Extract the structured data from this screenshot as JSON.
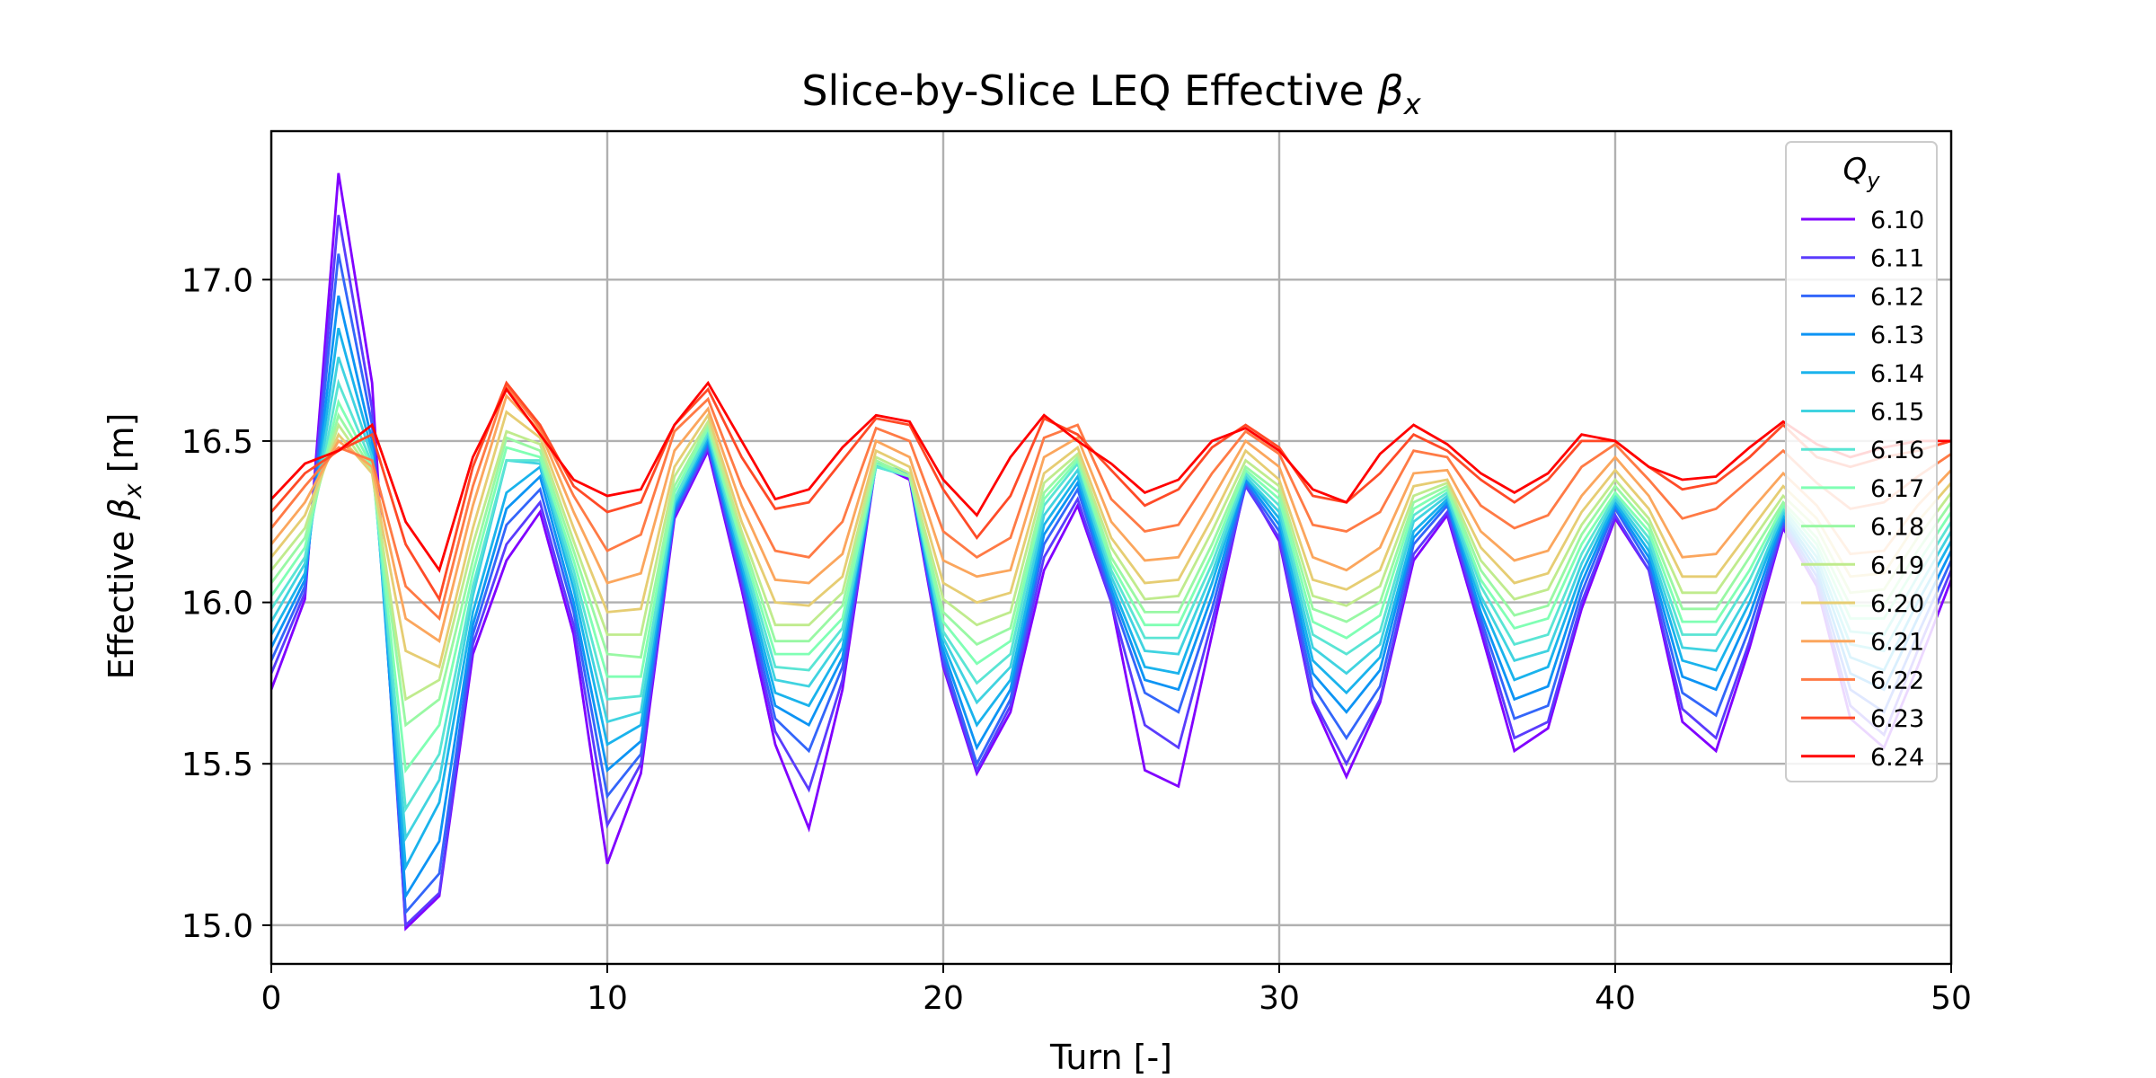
{
  "chart_data": {
    "type": "line",
    "title": {
      "prefix": "Slice-by-Slice LEQ Effective ",
      "symbol": "β",
      "subscript": "x"
    },
    "xlabel": "Turn [-]",
    "ylabel": {
      "prefix": "Effective ",
      "symbol": "β",
      "subscript": "x",
      "suffix": " [m]"
    },
    "xlim": [
      0,
      50
    ],
    "ylim": [
      14.88,
      17.46
    ],
    "xticks": [
      0,
      10,
      20,
      30,
      40,
      50
    ],
    "yticks": [
      15.0,
      15.5,
      16.0,
      16.5,
      17.0
    ],
    "ytick_labels": [
      "15.0",
      "15.5",
      "16.0",
      "16.5",
      "17.0"
    ],
    "grid": true,
    "legend": {
      "title_symbol": "Q",
      "title_subscript": "y",
      "placement": "upper right"
    },
    "x": [
      0,
      1,
      2,
      3,
      4,
      5,
      6,
      7,
      8,
      9,
      10,
      11,
      12,
      13,
      14,
      15,
      16,
      17,
      18,
      19,
      20,
      21,
      22,
      23,
      24,
      25,
      26,
      27,
      28,
      29,
      30,
      31,
      32,
      33,
      34,
      35,
      36,
      37,
      38,
      39,
      40,
      41,
      42,
      43,
      44,
      45,
      46,
      47,
      48,
      49,
      50
    ],
    "series": [
      {
        "name": "6.10",
        "color": "#8000ff",
        "values": [
          15.73,
          16.01,
          17.33,
          16.68,
          14.99,
          15.09,
          15.84,
          16.13,
          16.28,
          15.9,
          15.19,
          15.47,
          16.26,
          16.47,
          16.04,
          15.56,
          15.3,
          15.73,
          16.43,
          16.38,
          15.8,
          15.47,
          15.66,
          16.1,
          16.3,
          16.0,
          15.48,
          15.43,
          15.9,
          16.37,
          16.19,
          15.69,
          15.46,
          15.69,
          16.13,
          16.27,
          15.91,
          15.54,
          15.61,
          15.98,
          16.26,
          16.1,
          15.63,
          15.54,
          15.86,
          16.23,
          16.05,
          15.64,
          15.55,
          15.8,
          16.07
        ]
      },
      {
        "name": "6.11",
        "color": "#5a3cfd",
        "values": [
          15.78,
          16.03,
          17.2,
          16.6,
          15.0,
          15.1,
          15.87,
          16.18,
          16.31,
          15.93,
          15.31,
          15.5,
          16.27,
          16.48,
          16.06,
          15.6,
          15.42,
          15.76,
          16.43,
          16.39,
          15.81,
          15.48,
          15.68,
          16.14,
          16.32,
          16.0,
          15.62,
          15.55,
          15.94,
          16.36,
          16.2,
          15.7,
          15.5,
          15.7,
          16.15,
          16.28,
          15.93,
          15.58,
          15.63,
          16.0,
          16.27,
          16.1,
          15.67,
          15.58,
          15.88,
          16.24,
          16.06,
          15.68,
          15.59,
          15.85,
          16.1
        ]
      },
      {
        "name": "6.12",
        "color": "#3366fa",
        "values": [
          15.82,
          16.05,
          17.08,
          16.55,
          15.04,
          15.16,
          15.9,
          16.24,
          16.35,
          15.97,
          15.4,
          15.53,
          16.28,
          16.49,
          16.08,
          15.64,
          15.54,
          15.8,
          16.43,
          16.39,
          15.83,
          15.5,
          15.7,
          16.18,
          16.35,
          16.02,
          15.72,
          15.66,
          15.98,
          16.37,
          16.22,
          15.74,
          15.58,
          15.74,
          16.18,
          16.3,
          15.95,
          15.64,
          15.68,
          16.03,
          16.29,
          16.12,
          15.72,
          15.65,
          15.92,
          16.25,
          16.08,
          15.73,
          15.66,
          15.9,
          16.13
        ]
      },
      {
        "name": "6.13",
        "color": "#0d94f4",
        "values": [
          15.86,
          16.07,
          16.95,
          16.5,
          15.09,
          15.26,
          15.93,
          16.29,
          16.39,
          16.0,
          15.48,
          15.57,
          16.29,
          16.5,
          16.1,
          15.68,
          15.62,
          15.83,
          16.43,
          16.39,
          15.85,
          15.55,
          15.73,
          16.21,
          16.37,
          16.04,
          15.76,
          15.73,
          16.02,
          16.38,
          16.24,
          15.78,
          15.66,
          15.79,
          16.2,
          16.31,
          15.97,
          15.7,
          15.74,
          16.06,
          16.3,
          16.14,
          15.77,
          15.73,
          15.96,
          16.26,
          16.1,
          15.78,
          15.73,
          15.95,
          16.16
        ]
      },
      {
        "name": "6.14",
        "color": "#1ab3ec",
        "values": [
          15.9,
          16.09,
          16.85,
          16.47,
          15.18,
          15.38,
          15.97,
          16.34,
          16.42,
          16.04,
          15.56,
          15.62,
          16.3,
          16.51,
          16.12,
          15.72,
          15.68,
          15.86,
          16.43,
          16.4,
          15.87,
          15.62,
          15.76,
          16.24,
          16.39,
          16.06,
          15.8,
          15.78,
          16.06,
          16.39,
          16.26,
          15.82,
          15.72,
          15.83,
          16.22,
          16.32,
          16.0,
          15.76,
          15.8,
          16.09,
          16.31,
          16.16,
          15.82,
          15.79,
          16.0,
          16.27,
          16.12,
          15.83,
          15.79,
          16.0,
          16.19
        ]
      },
      {
        "name": "6.15",
        "color": "#40d3e0",
        "values": [
          15.94,
          16.12,
          16.76,
          16.45,
          15.27,
          15.45,
          16.02,
          16.44,
          16.43,
          16.07,
          15.63,
          15.66,
          16.31,
          16.52,
          16.14,
          15.76,
          15.74,
          15.89,
          16.42,
          16.39,
          15.89,
          15.69,
          15.8,
          16.27,
          16.41,
          16.08,
          15.85,
          15.84,
          16.09,
          16.39,
          16.28,
          15.86,
          15.78,
          15.87,
          16.25,
          16.33,
          16.02,
          15.82,
          15.85,
          16.12,
          16.32,
          16.18,
          15.86,
          15.85,
          16.03,
          16.28,
          16.14,
          15.87,
          15.85,
          16.04,
          16.22
        ]
      },
      {
        "name": "6.16",
        "color": "#5ae5d4",
        "values": [
          15.98,
          16.14,
          16.68,
          16.43,
          15.36,
          15.53,
          16.05,
          16.44,
          16.44,
          16.1,
          15.7,
          15.71,
          16.32,
          16.53,
          16.16,
          15.8,
          15.79,
          15.92,
          16.42,
          16.39,
          15.91,
          15.75,
          15.84,
          16.3,
          16.43,
          16.1,
          15.89,
          15.89,
          16.12,
          16.4,
          16.3,
          15.9,
          15.84,
          15.91,
          16.27,
          16.34,
          16.05,
          15.87,
          15.9,
          16.15,
          16.33,
          16.2,
          15.9,
          15.9,
          16.07,
          16.29,
          16.16,
          15.91,
          15.9,
          16.08,
          16.25
        ]
      },
      {
        "name": "6.17",
        "color": "#80ffb4",
        "values": [
          16.02,
          16.17,
          16.62,
          16.42,
          15.48,
          15.62,
          16.09,
          16.48,
          16.45,
          16.13,
          15.77,
          15.77,
          16.34,
          16.54,
          16.18,
          15.84,
          15.84,
          15.95,
          16.43,
          16.39,
          15.94,
          15.81,
          15.88,
          16.32,
          16.44,
          16.12,
          15.93,
          15.93,
          16.15,
          16.41,
          16.32,
          15.94,
          15.89,
          15.96,
          16.29,
          16.35,
          16.07,
          15.92,
          15.95,
          16.18,
          16.34,
          16.22,
          15.94,
          15.94,
          16.1,
          16.3,
          16.18,
          15.95,
          15.95,
          16.12,
          16.28
        ]
      },
      {
        "name": "6.18",
        "color": "#99f8a4",
        "values": [
          16.06,
          16.2,
          16.58,
          16.41,
          15.62,
          15.7,
          16.13,
          16.51,
          16.47,
          16.16,
          15.84,
          15.83,
          16.36,
          16.55,
          16.2,
          15.88,
          15.88,
          15.99,
          16.44,
          16.39,
          15.97,
          15.87,
          15.92,
          16.34,
          16.45,
          16.14,
          15.97,
          15.97,
          16.18,
          16.42,
          16.34,
          15.98,
          15.94,
          16.0,
          16.31,
          16.36,
          16.1,
          15.96,
          15.99,
          16.21,
          16.36,
          16.24,
          15.98,
          15.98,
          16.14,
          16.31,
          16.2,
          15.99,
          15.99,
          16.16,
          16.31
        ]
      },
      {
        "name": "6.19",
        "color": "#c0eb8d",
        "values": [
          16.1,
          16.23,
          16.55,
          16.4,
          15.7,
          15.76,
          16.18,
          16.53,
          16.49,
          16.19,
          15.9,
          15.9,
          16.39,
          16.56,
          16.22,
          15.93,
          15.93,
          16.03,
          16.45,
          16.4,
          16.01,
          15.93,
          15.97,
          16.37,
          16.46,
          16.17,
          16.01,
          16.02,
          16.22,
          16.44,
          16.36,
          16.02,
          15.99,
          16.05,
          16.33,
          16.37,
          16.13,
          16.01,
          16.04,
          16.24,
          16.38,
          16.26,
          16.03,
          16.03,
          16.18,
          16.33,
          16.23,
          16.03,
          16.04,
          16.2,
          16.34
        ]
      },
      {
        "name": "6.20",
        "color": "#e6cd73",
        "values": [
          16.14,
          16.27,
          16.52,
          16.4,
          15.85,
          15.8,
          16.23,
          16.59,
          16.51,
          16.23,
          15.97,
          15.98,
          16.42,
          16.58,
          16.25,
          16.0,
          15.99,
          16.08,
          16.47,
          16.42,
          16.06,
          16.0,
          16.03,
          16.4,
          16.48,
          16.2,
          16.06,
          16.07,
          16.26,
          16.47,
          16.38,
          16.07,
          16.04,
          16.1,
          16.36,
          16.38,
          16.17,
          16.06,
          16.09,
          16.28,
          16.41,
          16.29,
          16.08,
          16.08,
          16.22,
          16.36,
          16.26,
          16.08,
          16.09,
          16.25,
          16.37
        ]
      },
      {
        "name": "6.21",
        "color": "#fba65d",
        "values": [
          16.18,
          16.31,
          16.5,
          16.42,
          15.95,
          15.88,
          16.3,
          16.64,
          16.53,
          16.28,
          16.06,
          16.09,
          16.47,
          16.6,
          16.3,
          16.07,
          16.06,
          16.15,
          16.5,
          16.45,
          16.13,
          16.08,
          16.1,
          16.45,
          16.51,
          16.25,
          16.13,
          16.14,
          16.32,
          16.5,
          16.42,
          16.14,
          16.1,
          16.17,
          16.4,
          16.41,
          16.22,
          16.13,
          16.16,
          16.33,
          16.45,
          16.33,
          16.14,
          16.15,
          16.28,
          16.4,
          16.3,
          16.15,
          16.16,
          16.3,
          16.41
        ]
      },
      {
        "name": "6.22",
        "color": "#ff7a45",
        "values": [
          16.23,
          16.36,
          16.48,
          16.44,
          16.05,
          15.95,
          16.36,
          16.67,
          16.54,
          16.33,
          16.16,
          16.21,
          16.53,
          16.63,
          16.36,
          16.16,
          16.14,
          16.25,
          16.54,
          16.5,
          16.22,
          16.14,
          16.2,
          16.51,
          16.55,
          16.32,
          16.22,
          16.24,
          16.4,
          16.53,
          16.46,
          16.24,
          16.22,
          16.28,
          16.47,
          16.45,
          16.3,
          16.23,
          16.27,
          16.42,
          16.49,
          16.38,
          16.26,
          16.29,
          16.38,
          16.47,
          16.37,
          16.29,
          16.31,
          16.39,
          16.46
        ]
      },
      {
        "name": "6.23",
        "color": "#ff4a27",
        "values": [
          16.28,
          16.4,
          16.47,
          16.52,
          16.18,
          16.01,
          16.42,
          16.68,
          16.55,
          16.36,
          16.28,
          16.31,
          16.55,
          16.66,
          16.45,
          16.29,
          16.31,
          16.44,
          16.57,
          16.55,
          16.35,
          16.2,
          16.33,
          16.57,
          16.52,
          16.41,
          16.3,
          16.35,
          16.48,
          16.55,
          16.48,
          16.33,
          16.31,
          16.4,
          16.52,
          16.47,
          16.38,
          16.31,
          16.38,
          16.5,
          16.5,
          16.42,
          16.35,
          16.37,
          16.45,
          16.55,
          16.45,
          16.42,
          16.45,
          16.47,
          16.5
        ]
      },
      {
        "name": "6.24",
        "color": "#ff0000",
        "values": [
          16.32,
          16.43,
          16.47,
          16.55,
          16.25,
          16.1,
          16.45,
          16.66,
          16.52,
          16.38,
          16.33,
          16.35,
          16.55,
          16.68,
          16.5,
          16.32,
          16.35,
          16.48,
          16.58,
          16.56,
          16.38,
          16.27,
          16.45,
          16.58,
          16.5,
          16.43,
          16.34,
          16.38,
          16.5,
          16.54,
          16.47,
          16.35,
          16.31,
          16.46,
          16.55,
          16.49,
          16.4,
          16.34,
          16.4,
          16.52,
          16.5,
          16.42,
          16.38,
          16.39,
          16.48,
          16.56,
          16.49,
          16.45,
          16.48,
          16.5,
          16.5
        ]
      }
    ]
  }
}
